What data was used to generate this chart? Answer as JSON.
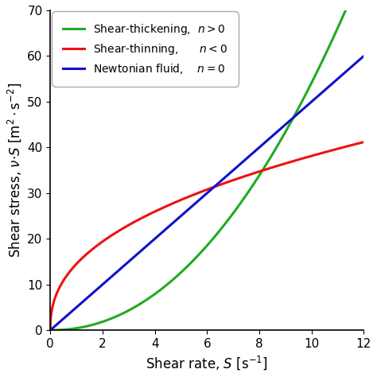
{
  "xlabel": "Shear rate, $S$ [s$^{-1}$]",
  "ylabel": "Shear stress, $\\nu{\\cdot}S$ [m$^2\\cdot$s$^{-2}$]",
  "xlim": [
    0,
    12
  ],
  "ylim": [
    0,
    70
  ],
  "xticks": [
    0,
    2,
    4,
    6,
    8,
    10,
    12
  ],
  "yticks": [
    0,
    10,
    20,
    30,
    40,
    50,
    60,
    70
  ],
  "green_label": "Shear-thickening,  $n > 0$",
  "red_label": "Shear-thinning,      $n < 0$",
  "blue_label": "Newtonian fluid,    $n = 0$",
  "green_color": "#22aa22",
  "red_color": "#ee1111",
  "blue_color": "#1111cc",
  "green_K": 0.43,
  "green_n": 2.1,
  "red_K": 14.5,
  "red_n": 0.42,
  "blue_K": 5.0,
  "linewidth": 2.2,
  "background_color": "#ffffff",
  "legend_fontsize": 10,
  "tick_fontsize": 11,
  "label_fontsize": 12
}
